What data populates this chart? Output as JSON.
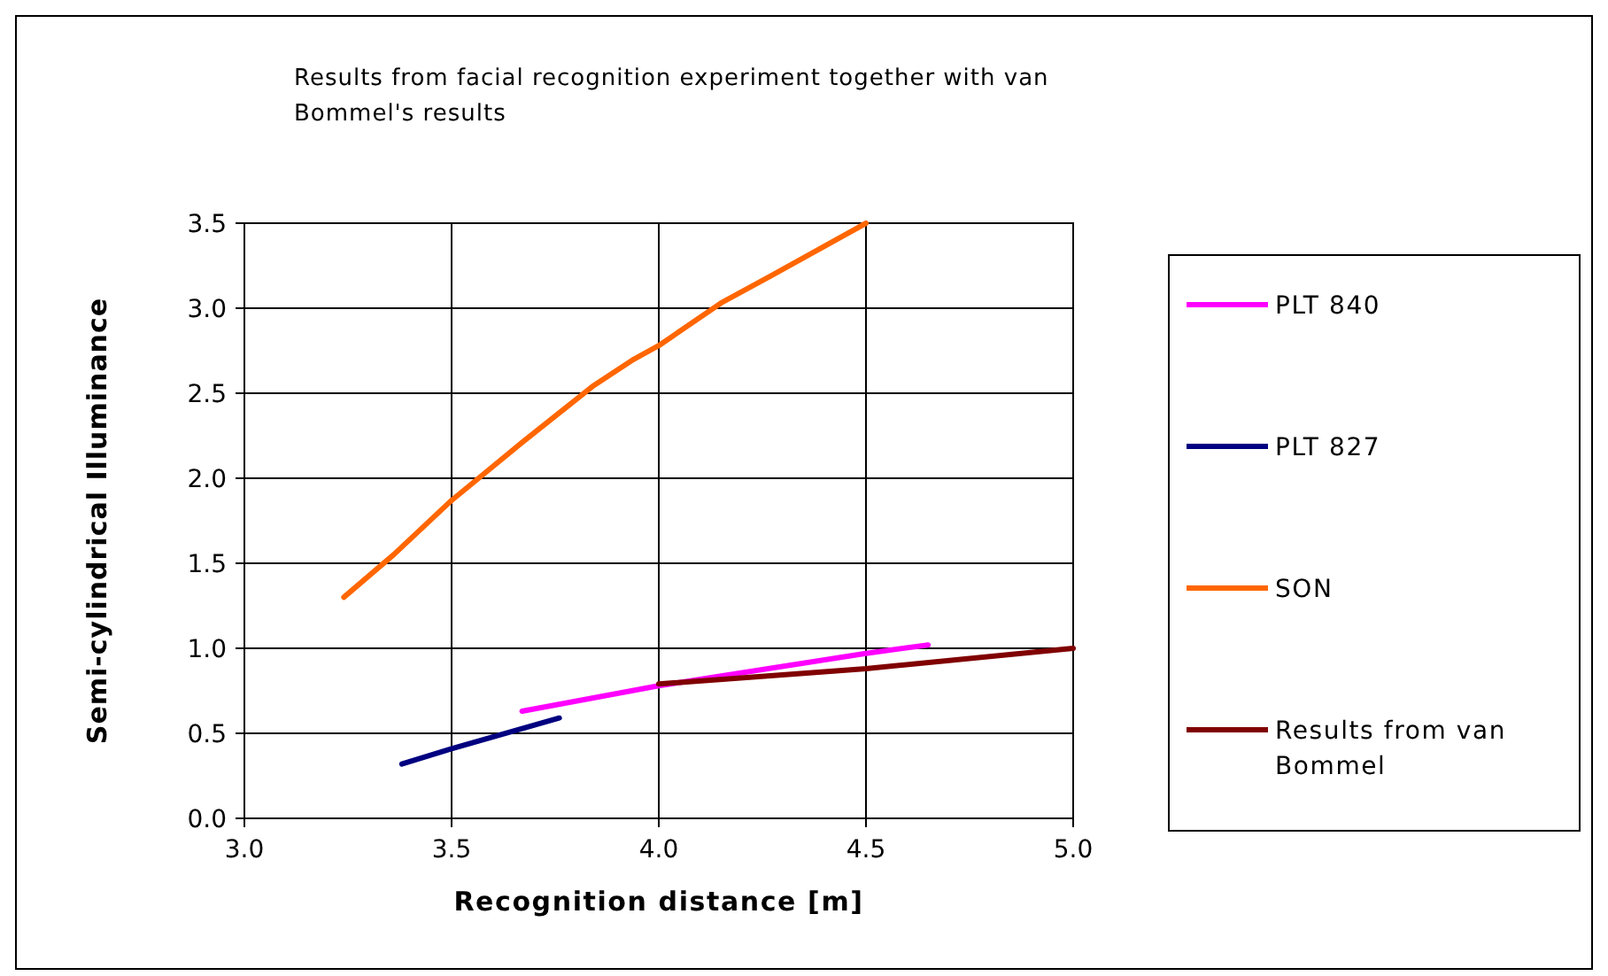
{
  "chart_data": {
    "type": "line",
    "title": "Results from facial recognition experiment together with van Bommel's results",
    "xlabel": "Recognition distance [m]",
    "ylabel": "Semi-cylindrical Illuminance",
    "xlim": [
      3.0,
      5.0
    ],
    "xticks": [
      {
        "value": 3.0,
        "label": "3.0"
      },
      3.5,
      {
        "value": 4.0,
        "label": "4.0"
      },
      4.5,
      {
        "value": 5.0,
        "label": "5.0"
      }
    ],
    "ylim": [
      0.0,
      3.5
    ],
    "yticks": [
      {
        "value": 0.0,
        "label": "0.0"
      },
      0.5,
      {
        "value": 1.0,
        "label": "1.0"
      },
      1.5,
      {
        "value": 2.0,
        "label": "2.0"
      },
      2.5,
      {
        "value": 3.0,
        "label": "3.0"
      },
      3.5
    ],
    "grid": true,
    "legend": "right",
    "marker": "none",
    "line_style": "solid",
    "series": [
      {
        "name": "PLT 840",
        "color": "#ff00ff",
        "x": [
          3.67,
          4.0,
          4.5,
          4.65
        ],
        "values": [
          0.63,
          0.78,
          0.97,
          1.02
        ]
      },
      {
        "name": "PLT 827",
        "color": "#000080",
        "x": [
          3.38,
          3.5,
          3.76
        ],
        "values": [
          0.32,
          0.41,
          0.59
        ]
      },
      {
        "name": "SON",
        "color": "#ff6600",
        "x": [
          3.24,
          3.36,
          3.5,
          3.67,
          3.84,
          3.94,
          4.0,
          4.15,
          4.27,
          4.5
        ],
        "values": [
          1.3,
          1.55,
          1.87,
          2.21,
          2.54,
          2.7,
          2.78,
          3.03,
          3.19,
          3.5
        ]
      },
      {
        "name": "Results from van Bommel",
        "color": "#800000",
        "x": [
          4.0,
          4.5,
          5.0
        ],
        "values": [
          0.79,
          0.88,
          1.0
        ]
      }
    ]
  }
}
